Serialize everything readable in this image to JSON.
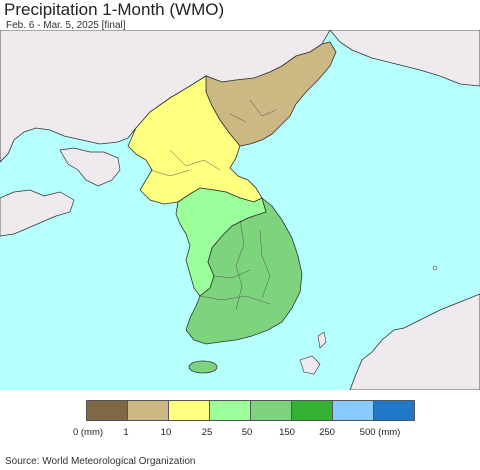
{
  "header": {
    "title": "Precipitation 1-Month (WMO)",
    "subtitle": "Feb. 6 - Mar. 5, 2025 [final]"
  },
  "colors": {
    "ocean": "#b6ffff",
    "land_outside": "#eeeaee",
    "border": "#333333",
    "levels": [
      "#7f6846",
      "#cbb883",
      "#ffff80",
      "#9bff9a",
      "#7dd47d",
      "#33b233",
      "#87cbff",
      "#1f78c8"
    ]
  },
  "legend": {
    "ticks": [
      "0 (mm)",
      "1",
      "10",
      "25",
      "50",
      "150",
      "250",
      "500 (mm)"
    ]
  },
  "map_regions": {
    "north_korea_northeast": "1-10 mm",
    "north_korea_west": "10-25 mm",
    "south_korea_west": "25-50 mm",
    "south_korea_east": "50-150 mm"
  },
  "footer": {
    "source": "Source: World Meteorological Organization"
  }
}
